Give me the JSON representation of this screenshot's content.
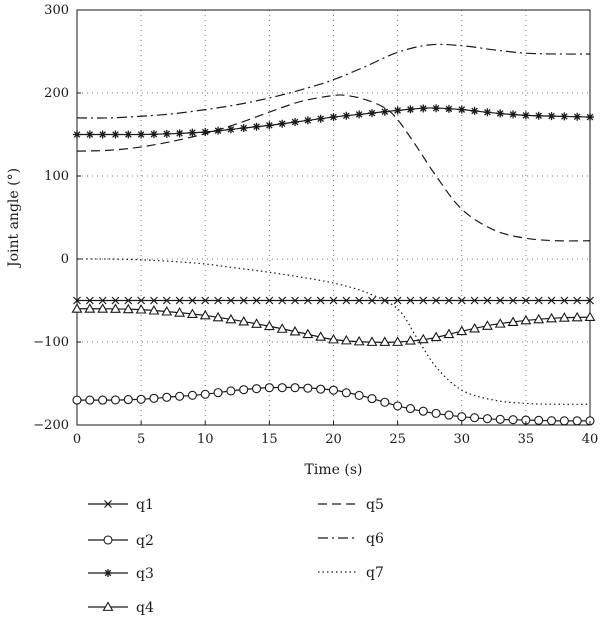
{
  "chart_data": {
    "type": "line",
    "xlabel": "Time (s)",
    "ylabel": "Joint angle (°)",
    "xlim": [
      0,
      40
    ],
    "ylim": [
      -200,
      300
    ],
    "xticks": [
      0,
      5,
      10,
      15,
      20,
      25,
      30,
      35,
      40
    ],
    "yticks": [
      -200,
      -100,
      0,
      100,
      200,
      300
    ],
    "grid": true,
    "legend_position": "below",
    "series": [
      {
        "name": "q1",
        "marker": "x",
        "dash": "none",
        "x": [
          0,
          5,
          10,
          15,
          20,
          25,
          30,
          35,
          40
        ],
        "y": [
          -50,
          -50,
          -50,
          -50,
          -50,
          -50,
          -50,
          -50,
          -50
        ]
      },
      {
        "name": "q2",
        "marker": "circle",
        "dash": "none",
        "x": [
          0,
          2.5,
          5,
          7.5,
          10,
          12.5,
          15,
          17.5,
          20,
          22.5,
          25,
          27.5,
          30,
          32.5,
          35,
          37.5,
          40
        ],
        "y": [
          -170,
          -170,
          -169,
          -166,
          -163,
          -158,
          -155,
          -155,
          -158,
          -166,
          -177,
          -185,
          -190,
          -193,
          -194,
          -195,
          -195
        ]
      },
      {
        "name": "q3",
        "marker": "star",
        "dash": "none",
        "x": [
          0,
          2.5,
          5,
          7.5,
          10,
          12.5,
          15,
          17.5,
          20,
          22.5,
          25,
          27.5,
          30,
          32.5,
          35,
          37.5,
          40
        ],
        "y": [
          150,
          150,
          150,
          151,
          153,
          157,
          161,
          166,
          171,
          175,
          179,
          182,
          180,
          176,
          173,
          172,
          171
        ]
      },
      {
        "name": "q4",
        "marker": "triangle",
        "dash": "none",
        "x": [
          0,
          2.5,
          5,
          7.5,
          10,
          12.5,
          15,
          17.5,
          20,
          22.5,
          25,
          27.5,
          30,
          32.5,
          35,
          37.5,
          40
        ],
        "y": [
          -60,
          -60,
          -61,
          -64,
          -68,
          -74,
          -81,
          -89,
          -97,
          -100,
          -100,
          -96,
          -87,
          -79,
          -74,
          -71,
          -70
        ]
      },
      {
        "name": "q5",
        "marker": "none",
        "dash": "dashed",
        "x": [
          0,
          2.5,
          5,
          7.5,
          10,
          12.5,
          15,
          17.5,
          20,
          21,
          22.5,
          24,
          25,
          26.5,
          28,
          30,
          32.5,
          35,
          37.5,
          40
        ],
        "y": [
          130,
          131,
          135,
          142,
          151,
          163,
          177,
          190,
          197,
          197,
          192,
          182,
          168,
          135,
          100,
          60,
          35,
          25,
          22,
          22
        ]
      },
      {
        "name": "q6",
        "marker": "none",
        "dash": "dashdot",
        "x": [
          0,
          2.5,
          5,
          7.5,
          10,
          12.5,
          15,
          17.5,
          20,
          22.5,
          25,
          27.5,
          30,
          32.5,
          35,
          37.5,
          40
        ],
        "y": [
          170,
          170,
          172,
          175,
          180,
          186,
          194,
          204,
          216,
          232,
          249,
          258,
          257,
          252,
          248,
          247,
          247
        ]
      },
      {
        "name": "q7",
        "marker": "none",
        "dash": "dotted",
        "x": [
          0,
          2.5,
          5,
          7.5,
          10,
          12.5,
          15,
          17.5,
          20,
          22.5,
          25,
          26.5,
          28,
          30,
          32.5,
          35,
          37.5,
          40
        ],
        "y": [
          0,
          0,
          -1,
          -3,
          -6,
          -11,
          -16,
          -22,
          -29,
          -40,
          -60,
          -95,
          -130,
          -158,
          -170,
          -174,
          -175,
          -175
        ]
      }
    ]
  }
}
